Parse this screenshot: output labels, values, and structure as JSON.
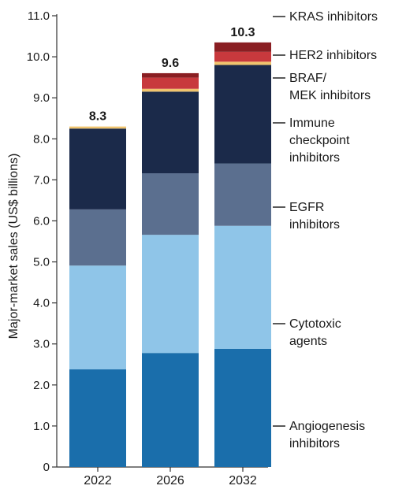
{
  "chart_data": {
    "type": "bar",
    "stacked": true,
    "categories": [
      "2022",
      "2026",
      "2032"
    ],
    "totals": [
      "8.3",
      "9.6",
      "10.3"
    ],
    "series": [
      {
        "name": "Angiogenesis inhibitors",
        "color": "#1a6eab",
        "values": [
          2.38,
          2.78,
          2.88
        ]
      },
      {
        "name": "Cytotoxic agents",
        "color": "#8fc5e8",
        "values": [
          2.53,
          2.88,
          3.0
        ]
      },
      {
        "name": "EGFR inhibitors",
        "color": "#5b6f8f",
        "values": [
          1.37,
          1.5,
          1.52
        ]
      },
      {
        "name": "Immune checkpoint inhibitors",
        "color": "#1b2a4a",
        "values": [
          1.97,
          1.99,
          2.4
        ]
      },
      {
        "name": "BRAF/ MEK inhibitors",
        "color": "#f0c46e",
        "values": [
          0.05,
          0.07,
          0.08
        ]
      },
      {
        "name": "HER2 inhibitors",
        "color": "#c8393d",
        "values": [
          0.0,
          0.27,
          0.24
        ]
      },
      {
        "name": "KRAS inhibitors",
        "color": "#8a1e22",
        "values": [
          0.0,
          0.11,
          0.23
        ]
      }
    ],
    "legend_lines": [
      [
        "KRAS inhibitors"
      ],
      [
        "HER2 inhibitors"
      ],
      [
        "BRAF/",
        "MEK inhibitors"
      ],
      [
        "Immune",
        "checkpoint",
        "inhibitors"
      ],
      [
        "EGFR",
        "inhibitors"
      ],
      [
        "Cytotoxic",
        "agents"
      ],
      [
        "Angiogenesis",
        "inhibitors"
      ]
    ],
    "ylabel": "Major-market sales (US$ billions)",
    "xlabel": "",
    "ylim": [
      0,
      11
    ],
    "yticks": [
      "0",
      "1.0",
      "2.0",
      "3.0",
      "4.0",
      "5.0",
      "6.0",
      "7.0",
      "8.0",
      "9.0",
      "10.0",
      "11.0"
    ],
    "grid": false,
    "legend_position": "right"
  }
}
